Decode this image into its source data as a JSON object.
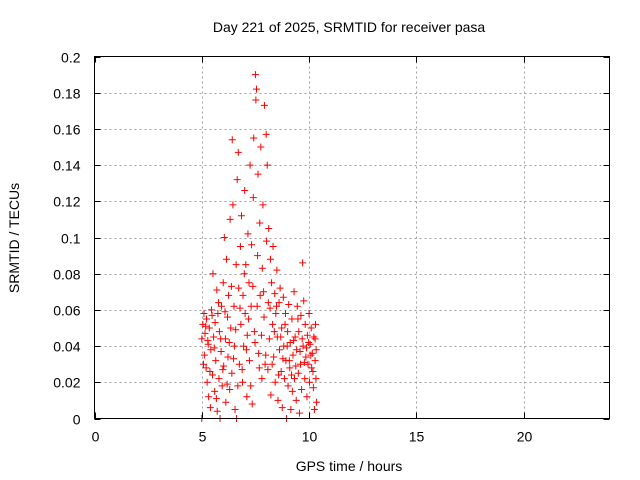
{
  "chart_data": {
    "type": "scatter",
    "title": "Day 221 of 2025, SRMTID for receiver pasa",
    "xlabel": "GPS time / hours",
    "ylabel": "SRMTID / TECUs",
    "xlim": [
      0,
      24
    ],
    "ylim": [
      0,
      0.2
    ],
    "xticks": [
      0,
      5,
      10,
      15,
      20
    ],
    "xtick_labels": [
      "0",
      "5",
      "10",
      "15",
      "20"
    ],
    "yticks": [
      0,
      0.02,
      0.04,
      0.06,
      0.08,
      0.1,
      0.12,
      0.14,
      0.16,
      0.18,
      0.2
    ],
    "ytick_labels": [
      "0",
      "0.02",
      "0.04",
      "0.06",
      "0.08",
      "0.1",
      "0.12",
      "0.14",
      "0.16",
      "0.18",
      "0.2"
    ],
    "grid": true,
    "marker": "+",
    "series": [
      {
        "name": "SRMTID",
        "color": "#ff0000",
        "points": [
          [
            5.0,
            0.0
          ],
          [
            5.0,
            0.044
          ],
          [
            5.05,
            0.052
          ],
          [
            5.1,
            0.058
          ],
          [
            5.12,
            0.035
          ],
          [
            5.15,
            0.047
          ],
          [
            5.2,
            0.028
          ],
          [
            5.22,
            0.055
          ],
          [
            5.25,
            0.02
          ],
          [
            5.3,
            0.041
          ],
          [
            5.32,
            0.012
          ],
          [
            5.35,
            0.05
          ],
          [
            5.4,
            0.006
          ],
          [
            5.42,
            0.038
          ],
          [
            5.45,
            0.06
          ],
          [
            5.5,
            0.024
          ],
          [
            5.52,
            0.08
          ],
          [
            5.55,
            0.045
          ],
          [
            5.6,
            0.015
          ],
          [
            5.62,
            0.053
          ],
          [
            5.65,
            0.032
          ],
          [
            5.7,
            0.071
          ],
          [
            5.72,
            0.004
          ],
          [
            5.75,
            0.058
          ],
          [
            5.8,
            0.022
          ],
          [
            5.82,
            0.048
          ],
          [
            5.85,
            0.0
          ],
          [
            5.9,
            0.037
          ],
          [
            5.92,
            0.062
          ],
          [
            5.95,
            0.018
          ],
          [
            6.0,
            0.075
          ],
          [
            6.02,
            0.029
          ],
          [
            6.05,
            0.1
          ],
          [
            6.1,
            0.044
          ],
          [
            6.12,
            0.009
          ],
          [
            6.15,
            0.088
          ],
          [
            6.2,
            0.056
          ],
          [
            6.22,
            0.034
          ],
          [
            6.25,
            0.068
          ],
          [
            6.3,
            0.016
          ],
          [
            6.32,
            0.11
          ],
          [
            6.35,
            0.05
          ],
          [
            6.4,
            0.025
          ],
          [
            6.42,
            0.154
          ],
          [
            6.45,
            0.118
          ],
          [
            6.5,
            0.062
          ],
          [
            6.52,
            0.04
          ],
          [
            6.55,
            0.005
          ],
          [
            6.6,
            0.085
          ],
          [
            6.62,
            0.0
          ],
          [
            6.65,
            0.132
          ],
          [
            6.7,
            0.147
          ],
          [
            6.72,
            0.072
          ],
          [
            6.75,
            0.03
          ],
          [
            6.8,
            0.095
          ],
          [
            6.82,
            0.052
          ],
          [
            6.85,
            0.112
          ],
          [
            6.9,
            0.02
          ],
          [
            6.92,
            0.068
          ],
          [
            6.95,
            0.04
          ],
          [
            7.0,
            0.126
          ],
          [
            7.02,
            0.058
          ],
          [
            7.05,
            0.085
          ],
          [
            7.1,
            0.012
          ],
          [
            7.12,
            0.046
          ],
          [
            7.15,
            0.102
          ],
          [
            7.2,
            0.075
          ],
          [
            7.22,
            0.032
          ],
          [
            7.25,
            0.14
          ],
          [
            7.3,
            0.062
          ],
          [
            7.32,
            0.096
          ],
          [
            7.35,
            0.008
          ],
          [
            7.4,
            0.122
          ],
          [
            7.42,
            0.155
          ],
          [
            7.45,
            0.048
          ],
          [
            7.5,
            0.19
          ],
          [
            7.52,
            0.176
          ],
          [
            7.55,
            0.182
          ],
          [
            7.6,
            0.09
          ],
          [
            7.62,
            0.135
          ],
          [
            7.65,
            0.036
          ],
          [
            7.7,
            0.108
          ],
          [
            7.72,
            0.068
          ],
          [
            7.75,
            0.15
          ],
          [
            7.8,
            0.022
          ],
          [
            7.82,
            0.083
          ],
          [
            7.85,
            0.118
          ],
          [
            7.9,
            0.056
          ],
          [
            7.92,
            0.173
          ],
          [
            7.95,
            0.03
          ],
          [
            8.0,
            0.157
          ],
          [
            8.02,
            0.098
          ],
          [
            8.05,
            0.14
          ],
          [
            8.1,
            0.064
          ],
          [
            8.12,
            0.105
          ],
          [
            8.15,
            0.044
          ],
          [
            8.2,
            0.088
          ],
          [
            8.22,
            0.013
          ],
          [
            8.25,
            0.075
          ],
          [
            8.3,
            0.052
          ],
          [
            8.32,
            0.095
          ],
          [
            8.35,
            0.034
          ],
          [
            8.4,
            0.069
          ],
          [
            8.42,
            0.02
          ],
          [
            8.45,
            0.058
          ],
          [
            8.5,
            0.082
          ],
          [
            8.52,
            0.045
          ],
          [
            8.55,
            0.01
          ],
          [
            8.6,
            0.064
          ],
          [
            8.62,
            0.038
          ],
          [
            8.65,
            0.072
          ],
          [
            8.7,
            0.026
          ],
          [
            8.72,
            0.05
          ],
          [
            8.75,
            0.006
          ],
          [
            8.8,
            0.067
          ],
          [
            8.82,
            0.04
          ],
          [
            8.85,
            0.022
          ],
          [
            8.9,
            0.058
          ],
          [
            8.92,
            0.032
          ],
          [
            8.95,
            0.0
          ],
          [
            9.0,
            0.048
          ],
          [
            9.02,
            0.018
          ],
          [
            9.05,
            0.063
          ],
          [
            9.1,
            0.028
          ],
          [
            9.12,
            0.042
          ],
          [
            9.15,
            0.005
          ],
          [
            9.2,
            0.055
          ],
          [
            9.22,
            0.015
          ],
          [
            9.25,
            0.035
          ],
          [
            9.3,
            0.07
          ],
          [
            9.32,
            0.022
          ],
          [
            9.35,
            0.045
          ],
          [
            9.4,
            0.01
          ],
          [
            9.42,
            0.038
          ],
          [
            9.45,
            0.062
          ],
          [
            9.5,
            0.025
          ],
          [
            9.52,
            0.048
          ],
          [
            9.55,
            0.003
          ],
          [
            9.6,
            0.03
          ],
          [
            9.62,
            0.057
          ],
          [
            9.65,
            0.016
          ],
          [
            9.7,
            0.086
          ],
          [
            9.72,
            0.04
          ],
          [
            9.75,
            0.065
          ],
          [
            9.8,
            0.022
          ],
          [
            9.82,
            0.052
          ],
          [
            9.85,
            0.034
          ],
          [
            9.9,
            0.012
          ],
          [
            9.92,
            0.046
          ],
          [
            9.95,
            0.03
          ],
          [
            10.0,
            0.058
          ],
          [
            10.02,
            0.02
          ],
          [
            10.05,
            0.041
          ],
          [
            10.1,
            0.05
          ],
          [
            10.12,
            0.028
          ],
          [
            10.15,
            0.036
          ],
          [
            10.2,
            0.017
          ],
          [
            10.22,
            0.045
          ],
          [
            10.25,
            0.005
          ],
          [
            10.28,
            0.032
          ],
          [
            10.3,
            0.052
          ],
          [
            10.32,
            0.022
          ],
          [
            10.35,
            0.009
          ],
          [
            5.08,
            0.03
          ],
          [
            5.18,
            0.051
          ],
          [
            5.28,
            0.043
          ],
          [
            5.38,
            0.026
          ],
          [
            5.48,
            0.057
          ],
          [
            5.58,
            0.039
          ],
          [
            5.68,
            0.011
          ],
          [
            5.78,
            0.064
          ],
          [
            5.88,
            0.044
          ],
          [
            5.98,
            0.027
          ],
          [
            6.08,
            0.059
          ],
          [
            6.18,
            0.019
          ],
          [
            6.28,
            0.042
          ],
          [
            6.38,
            0.073
          ],
          [
            6.48,
            0.033
          ],
          [
            6.58,
            0.049
          ],
          [
            6.68,
            0.018
          ],
          [
            6.78,
            0.061
          ],
          [
            6.88,
            0.027
          ],
          [
            6.98,
            0.08
          ],
          [
            7.08,
            0.038
          ],
          [
            7.18,
            0.055
          ],
          [
            7.28,
            0.018
          ],
          [
            7.38,
            0.073
          ],
          [
            7.48,
            0.042
          ],
          [
            7.58,
            0.062
          ],
          [
            7.68,
            0.028
          ],
          [
            7.78,
            0.046
          ],
          [
            7.88,
            0.07
          ],
          [
            7.98,
            0.035
          ],
          [
            8.08,
            0.027
          ],
          [
            8.18,
            0.061
          ],
          [
            8.28,
            0.03
          ],
          [
            8.38,
            0.048
          ],
          [
            8.48,
            0.062
          ],
          [
            8.58,
            0.024
          ],
          [
            8.68,
            0.045
          ],
          [
            8.78,
            0.033
          ],
          [
            8.88,
            0.052
          ],
          [
            8.98,
            0.04
          ],
          [
            9.08,
            0.032
          ],
          [
            9.18,
            0.024
          ],
          [
            9.28,
            0.043
          ],
          [
            9.38,
            0.029
          ],
          [
            9.48,
            0.055
          ],
          [
            9.58,
            0.037
          ],
          [
            9.68,
            0.044
          ],
          [
            9.78,
            0.031
          ],
          [
            9.88,
            0.039
          ],
          [
            9.98,
            0.042
          ],
          [
            10.08,
            0.035
          ],
          [
            10.18,
            0.026
          ],
          [
            10.28,
            0.044
          ],
          [
            10.33,
            0.038
          ]
        ]
      }
    ]
  }
}
